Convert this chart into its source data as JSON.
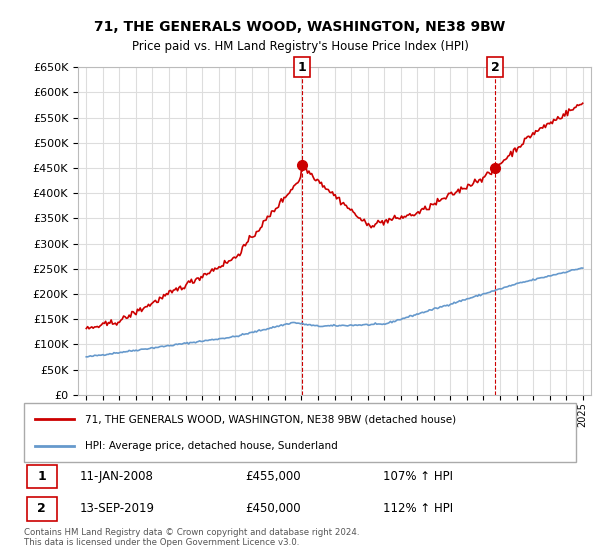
{
  "title": "71, THE GENERALS WOOD, WASHINGTON, NE38 9BW",
  "subtitle": "Price paid vs. HM Land Registry's House Price Index (HPI)",
  "legend_line1": "71, THE GENERALS WOOD, WASHINGTON, NE38 9BW (detached house)",
  "legend_line2": "HPI: Average price, detached house, Sunderland",
  "sale1_label": "1",
  "sale1_date": "11-JAN-2008",
  "sale1_price": "£455,000",
  "sale1_hpi": "107% ↑ HPI",
  "sale1_x": 2008.03,
  "sale1_y": 455000,
  "sale2_label": "2",
  "sale2_date": "13-SEP-2019",
  "sale2_price": "£450,000",
  "sale2_hpi": "112% ↑ HPI",
  "sale2_x": 2019.71,
  "sale2_y": 450000,
  "footer": "Contains HM Land Registry data © Crown copyright and database right 2024.\nThis data is licensed under the Open Government Licence v3.0.",
  "red_color": "#cc0000",
  "blue_color": "#6699cc",
  "ylim": [
    0,
    650000
  ],
  "yticks": [
    0,
    50000,
    100000,
    150000,
    200000,
    250000,
    300000,
    350000,
    400000,
    450000,
    500000,
    550000,
    600000,
    650000
  ],
  "xlim": [
    1994.5,
    2025.5
  ],
  "grid_color": "#dddddd",
  "bg_color": "#ffffff"
}
